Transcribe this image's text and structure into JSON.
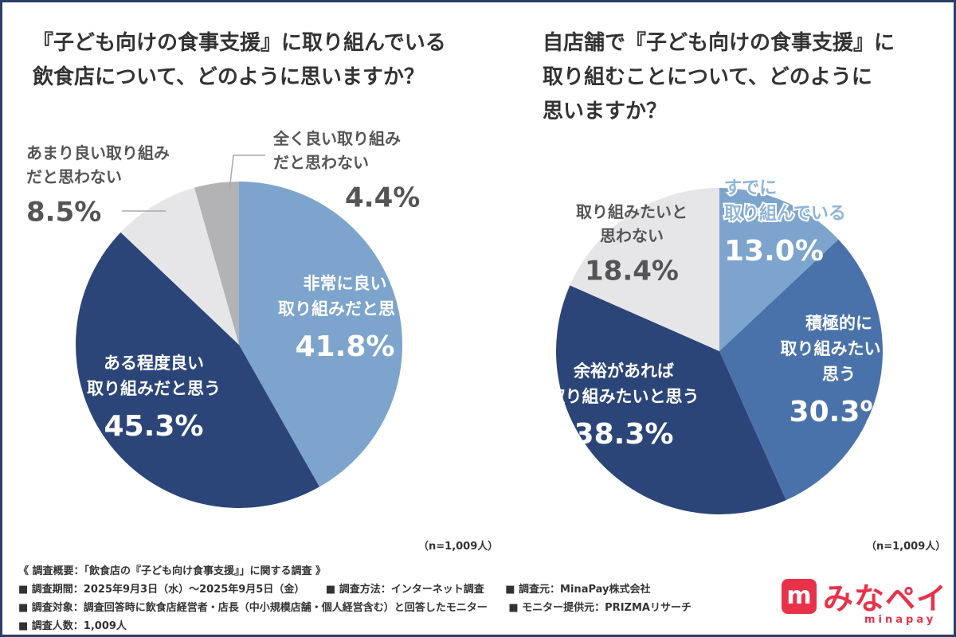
{
  "chart_data": [
    {
      "type": "pie",
      "title_lines": [
        "『子ども向けの食事支援』に取り組んでいる",
        "飲食店について、どのように思いますか？"
      ],
      "note": "（n=1,009人）",
      "slices": [
        {
          "label_lines": [
            "非常に良い",
            "取り組みだと思う"
          ],
          "value": 41.8,
          "value_label": "41.8%",
          "color": "#7da4cc"
        },
        {
          "label_lines": [
            "ある程度良い",
            "取り組みだと思う"
          ],
          "value": 45.3,
          "value_label": "45.3%",
          "color": "#2c4579"
        },
        {
          "label_lines": [
            "あまり良い取り組み",
            "だと思わない"
          ],
          "value": 8.5,
          "value_label": "8.5%",
          "color": "#e6e6e9"
        },
        {
          "label_lines": [
            "全く良い取り組み",
            "だと思わない"
          ],
          "value": 4.4,
          "value_label": "4.4%",
          "color": "#b3b3b6"
        }
      ]
    },
    {
      "type": "pie",
      "title_lines": [
        "自店舗で『子ども向けの食事支援』に",
        "取り組むことについて、どのように",
        "思いますか？"
      ],
      "note": "（n=1,009人）",
      "slices": [
        {
          "label_lines": [
            "すでに",
            "取り組んでいる"
          ],
          "value": 13.0,
          "value_label": "13.0%",
          "color": "#7da4cc"
        },
        {
          "label_lines": [
            "積極的に",
            "取り組みたいと",
            "思う"
          ],
          "value": 30.3,
          "value_label": "30.3%",
          "color": "#4a72aa"
        },
        {
          "label_lines": [
            "余裕があれば",
            "取り組みたいと思う"
          ],
          "value": 38.3,
          "value_label": "38.3%",
          "color": "#2c4579"
        },
        {
          "label_lines": [
            "取り組みたいと",
            "思わない"
          ],
          "value": 18.4,
          "value_label": "18.4%",
          "color": "#e6e6e9"
        }
      ]
    }
  ],
  "footer": {
    "summary": "《 調査概要：「飲食店の『子ども向け食事支援』」に関する調査 》",
    "period": "■ 調査期間：2025年9月3日（水）～2025年9月5日（金）",
    "method": "■ 調査方法：インターネット調査",
    "source": "■ 調査元：MinaPay株式会社",
    "target": "■ 調査対象：調査回答時に飲食店経営者・店長（中小規模店舗・個人経営含む）と回答したモニター",
    "provider": "■ モニター提供元：PRIZMAリサーチ",
    "count": "■ 調査人数：1,009人"
  },
  "logo": {
    "mark": "m",
    "text": "みなペイ",
    "sub": "minapay",
    "color": "#e8324a"
  }
}
